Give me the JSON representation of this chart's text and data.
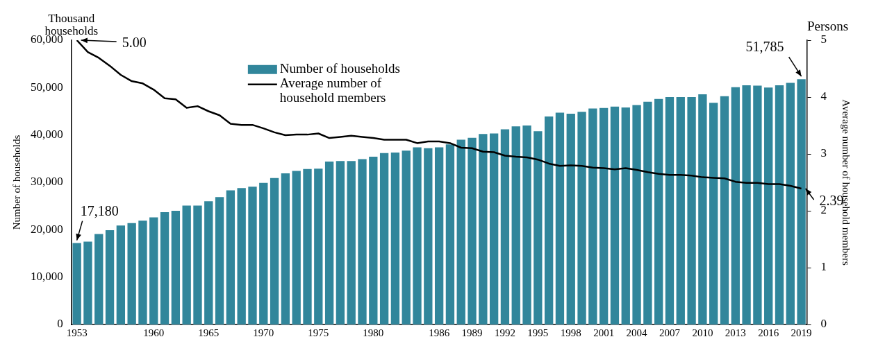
{
  "chart_data": {
    "type": "bar",
    "categories": [
      "1953",
      null,
      null,
      null,
      null,
      null,
      null,
      "1960",
      null,
      null,
      null,
      null,
      "1965",
      null,
      null,
      null,
      null,
      "1970",
      null,
      null,
      null,
      null,
      "1975",
      null,
      null,
      null,
      null,
      "1980",
      null,
      null,
      null,
      null,
      null,
      "1986",
      null,
      null,
      "1989",
      null,
      null,
      "1992",
      null,
      null,
      "1995",
      null,
      null,
      "1998",
      null,
      null,
      "2001",
      null,
      null,
      "2004",
      null,
      null,
      "2007",
      null,
      null,
      "2010",
      null,
      null,
      "2013",
      null,
      null,
      "2016",
      null,
      null,
      "2019"
    ],
    "series": [
      {
        "name": "Number of households",
        "color": "#31869b",
        "values": [
          17180,
          17500,
          19100,
          19900,
          20900,
          21400,
          21900,
          22600,
          23700,
          24000,
          25100,
          25100,
          26000,
          26900,
          28300,
          28800,
          29100,
          29900,
          30900,
          31900,
          32400,
          32800,
          32900,
          34400,
          34500,
          34500,
          34900,
          35400,
          36200,
          36300,
          36700,
          37400,
          37200,
          37400,
          38000,
          39000,
          39400,
          40200,
          40300,
          41200,
          41800,
          42000,
          40800,
          43900,
          44700,
          44500,
          44900,
          45600,
          45700,
          46000,
          45800,
          46300,
          47000,
          47600,
          48000,
          48000,
          48000,
          48600,
          46800,
          48200,
          50100,
          50500,
          50400,
          50000,
          50500,
          51000,
          51785
        ],
        "value_labels": [
          "17,180",
          null,
          null,
          null,
          null,
          null,
          null,
          null,
          null,
          null,
          null,
          null,
          null,
          null,
          null,
          null,
          null,
          null,
          null,
          null,
          null,
          null,
          null,
          null,
          null,
          null,
          null,
          null,
          null,
          null,
          null,
          null,
          null,
          null,
          null,
          null,
          null,
          null,
          null,
          null,
          null,
          null,
          null,
          null,
          null,
          null,
          null,
          null,
          null,
          null,
          null,
          null,
          null,
          null,
          null,
          null,
          null,
          null,
          null,
          null,
          null,
          null,
          null,
          null,
          null,
          null,
          "51,785"
        ]
      },
      {
        "name": "Average number of household members",
        "type": "line",
        "axis": "y2",
        "color": "#000000",
        "values": [
          5.0,
          4.79,
          4.69,
          4.55,
          4.39,
          4.28,
          4.24,
          4.13,
          3.98,
          3.96,
          3.81,
          3.84,
          3.75,
          3.68,
          3.53,
          3.51,
          3.51,
          3.45,
          3.38,
          3.33,
          3.34,
          3.34,
          3.36,
          3.28,
          3.3,
          3.32,
          3.3,
          3.28,
          3.25,
          3.25,
          3.25,
          3.19,
          3.22,
          3.22,
          3.19,
          3.11,
          3.1,
          3.04,
          3.03,
          2.97,
          2.95,
          2.94,
          2.9,
          2.83,
          2.79,
          2.8,
          2.79,
          2.76,
          2.75,
          2.73,
          2.75,
          2.72,
          2.68,
          2.65,
          2.63,
          2.63,
          2.62,
          2.59,
          2.58,
          2.57,
          2.51,
          2.49,
          2.49,
          2.47,
          2.47,
          2.44,
          2.39
        ],
        "value_labels": [
          "5.00",
          null,
          null,
          null,
          null,
          null,
          null,
          null,
          null,
          null,
          null,
          null,
          null,
          null,
          null,
          null,
          null,
          null,
          null,
          null,
          null,
          null,
          null,
          null,
          null,
          null,
          null,
          null,
          null,
          null,
          null,
          null,
          null,
          null,
          null,
          null,
          null,
          null,
          null,
          null,
          null,
          null,
          null,
          null,
          null,
          null,
          null,
          null,
          null,
          null,
          null,
          null,
          null,
          null,
          null,
          null,
          null,
          null,
          null,
          null,
          null,
          null,
          null,
          null,
          null,
          null,
          "2.39"
        ]
      }
    ],
    "ylabel": "Number of households",
    "y2label": "Average number of household members",
    "annotations": [
      "Thousand households",
      "Persons"
    ],
    "ylim": [
      0,
      60000
    ],
    "yticks": [
      {
        "value": 0,
        "label": "0"
      },
      {
        "value": 10000,
        "label": "10,000"
      },
      {
        "value": 20000,
        "label": "20,000"
      },
      {
        "value": 30000,
        "label": "30,000"
      },
      {
        "value": 40000,
        "label": "40,000"
      },
      {
        "value": 50000,
        "label": "50,000"
      },
      {
        "value": 60000,
        "label": "60,000"
      }
    ],
    "y2lim": [
      0,
      5
    ],
    "y2ticks": [
      0,
      1,
      2,
      3,
      4,
      5
    ],
    "legend": "top left",
    "marker": "none"
  }
}
